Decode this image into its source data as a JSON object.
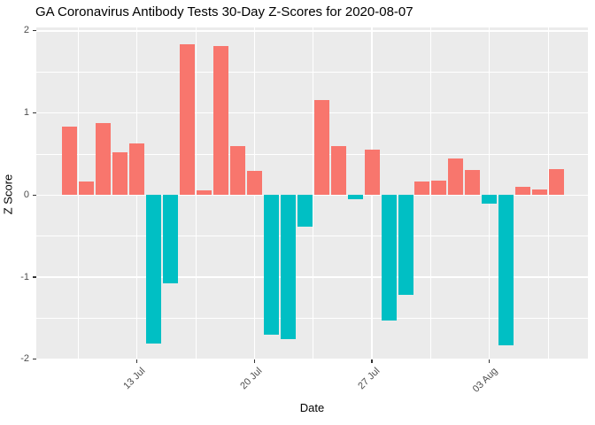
{
  "title": "GA Coronavirus Antibody Tests 30-Day Z-Scores for 2020-08-07",
  "chart_data": {
    "type": "bar",
    "title": "GA Coronavirus Antibody Tests 30-Day Z-Scores for 2020-08-07",
    "xlabel": "Date",
    "ylabel": "Z Score",
    "x": [
      "2020-07-09",
      "2020-07-10",
      "2020-07-11",
      "2020-07-12",
      "2020-07-13",
      "2020-07-14",
      "2020-07-15",
      "2020-07-16",
      "2020-07-17",
      "2020-07-18",
      "2020-07-19",
      "2020-07-20",
      "2020-07-21",
      "2020-07-22",
      "2020-07-23",
      "2020-07-24",
      "2020-07-25",
      "2020-07-26",
      "2020-07-27",
      "2020-07-28",
      "2020-07-29",
      "2020-07-30",
      "2020-07-31",
      "2020-08-01",
      "2020-08-02",
      "2020-08-03",
      "2020-08-04",
      "2020-08-05",
      "2020-08-06",
      "2020-08-07"
    ],
    "values": [
      0.83,
      0.16,
      0.88,
      0.52,
      0.63,
      -1.81,
      -1.08,
      1.84,
      0.06,
      1.82,
      0.6,
      0.29,
      -1.7,
      -1.75,
      -0.39,
      1.16,
      0.6,
      -0.05,
      0.55,
      -1.53,
      -1.22,
      0.16,
      0.18,
      0.45,
      0.3,
      -0.1,
      -1.83,
      0.1,
      0.07,
      0.32
    ],
    "x_ticks": [
      {
        "label": "13 Jul",
        "date": "2020-07-13"
      },
      {
        "label": "20 Jul",
        "date": "2020-07-20"
      },
      {
        "label": "27 Jul",
        "date": "2020-07-27"
      },
      {
        "label": "03 Aug",
        "date": "2020-08-03"
      }
    ],
    "y_ticks": [
      2,
      1,
      0,
      -1,
      -2
    ],
    "y_minor_ticks": [
      1.5,
      0.5,
      -0.5,
      -1.5
    ],
    "ylim": [
      -2.02,
      2.03
    ],
    "grid": true,
    "legend": false,
    "colors": {
      "positive_bar": "#F8766D",
      "negative_bar": "#00BFC4",
      "panel_background": "#EBEBEB",
      "gridline": "#FFFFFF",
      "tick_label": "#4D4D4D",
      "axis_text": "#000000"
    }
  }
}
